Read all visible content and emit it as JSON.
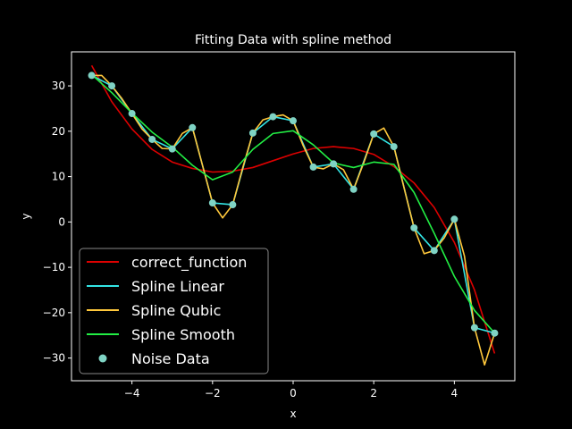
{
  "chart_data": {
    "type": "line",
    "title": "Fitting Data with spline method",
    "xlabel": "x",
    "ylabel": "y",
    "xlim": [
      -5.5,
      5.5
    ],
    "ylim": [
      -35,
      37.5
    ],
    "xticks": [
      -4,
      -2,
      0,
      2,
      4
    ],
    "yticks": [
      -30,
      -20,
      -10,
      0,
      10,
      20,
      30
    ],
    "grid": false,
    "legend_position": "lower-left",
    "series": [
      {
        "name": "correct_function",
        "kind": "line",
        "color": "#dd0000",
        "x": [
          -5.0,
          -4.5,
          -4.0,
          -3.5,
          -3.0,
          -2.5,
          -2.0,
          -1.5,
          -1.0,
          -0.5,
          0.0,
          0.5,
          1.0,
          1.5,
          2.0,
          2.5,
          3.0,
          3.5,
          4.0,
          4.5,
          5.0
        ],
        "y": [
          34.5,
          26.5,
          20.5,
          16.0,
          13.2,
          11.8,
          11.0,
          11.2,
          12.0,
          13.5,
          15.0,
          16.2,
          16.6,
          16.2,
          14.9,
          12.2,
          8.6,
          3.2,
          -4.5,
          -15.0,
          -29.0
        ]
      },
      {
        "name": "Spline Linear",
        "kind": "line",
        "color": "#33e5e5",
        "x": [
          -5.0,
          -4.5,
          -4.0,
          -3.5,
          -3.0,
          -2.5,
          -2.0,
          -1.5,
          -1.0,
          -0.5,
          0.0,
          0.5,
          1.0,
          1.5,
          2.0,
          2.5,
          3.0,
          3.5,
          4.0,
          4.5,
          5.0
        ],
        "y": [
          32.3,
          30.0,
          23.9,
          18.2,
          16.1,
          20.8,
          4.2,
          3.8,
          19.6,
          23.2,
          22.3,
          12.1,
          12.8,
          7.2,
          19.4,
          16.6,
          -1.3,
          -6.3,
          0.6,
          -23.3,
          -24.5
        ]
      },
      {
        "name": "Spline Qubic",
        "kind": "line",
        "color": "#ffc83c",
        "x": [
          -5.0,
          -4.75,
          -4.5,
          -4.25,
          -4.0,
          -3.75,
          -3.5,
          -3.25,
          -3.0,
          -2.75,
          -2.5,
          -2.25,
          -2.0,
          -1.75,
          -1.5,
          -1.25,
          -1.0,
          -0.75,
          -0.5,
          -0.25,
          0.0,
          0.25,
          0.5,
          0.75,
          1.0,
          1.25,
          1.5,
          1.75,
          2.0,
          2.25,
          2.5,
          2.75,
          3.0,
          3.25,
          3.5,
          3.75,
          4.0,
          4.25,
          4.5,
          4.75,
          5.0
        ],
        "y": [
          32.3,
          32.3,
          30.0,
          27.2,
          23.9,
          20.5,
          18.2,
          16.2,
          16.1,
          19.5,
          20.8,
          12.5,
          4.2,
          0.9,
          3.8,
          12.0,
          19.6,
          22.5,
          23.2,
          23.6,
          22.3,
          16.8,
          12.1,
          11.7,
          12.8,
          11.5,
          7.2,
          13.0,
          19.4,
          20.7,
          16.6,
          7.6,
          -1.3,
          -7.0,
          -6.3,
          -3.5,
          0.6,
          -7.5,
          -23.3,
          -31.5,
          -24.5
        ]
      },
      {
        "name": "Spline Smooth",
        "kind": "line",
        "color": "#22ee44",
        "x": [
          -5.0,
          -4.5,
          -4.0,
          -3.5,
          -3.0,
          -2.5,
          -2.0,
          -1.5,
          -1.0,
          -0.5,
          0.0,
          0.5,
          1.0,
          1.5,
          2.0,
          2.5,
          3.0,
          3.5,
          4.0,
          4.5,
          5.0
        ],
        "y": [
          32.5,
          28.5,
          24.0,
          19.8,
          16.5,
          12.5,
          9.3,
          11.0,
          16.0,
          19.5,
          20.1,
          17.0,
          13.0,
          12.0,
          13.2,
          12.7,
          6.5,
          -2.5,
          -12.0,
          -19.5,
          -24.5
        ]
      },
      {
        "name": "Noise Data",
        "kind": "scatter",
        "color": "#7fd3c4",
        "x": [
          -5.0,
          -4.5,
          -4.0,
          -3.5,
          -3.0,
          -2.5,
          -2.0,
          -1.5,
          -1.0,
          -0.5,
          0.0,
          0.5,
          1.0,
          1.5,
          2.0,
          2.5,
          3.0,
          3.5,
          4.0,
          4.5,
          5.0
        ],
        "y": [
          32.3,
          30.0,
          23.9,
          18.2,
          16.1,
          20.8,
          4.2,
          3.8,
          19.6,
          23.2,
          22.3,
          12.1,
          12.8,
          7.2,
          19.4,
          16.6,
          -1.3,
          -6.3,
          0.6,
          -23.3,
          -24.5
        ]
      }
    ]
  }
}
